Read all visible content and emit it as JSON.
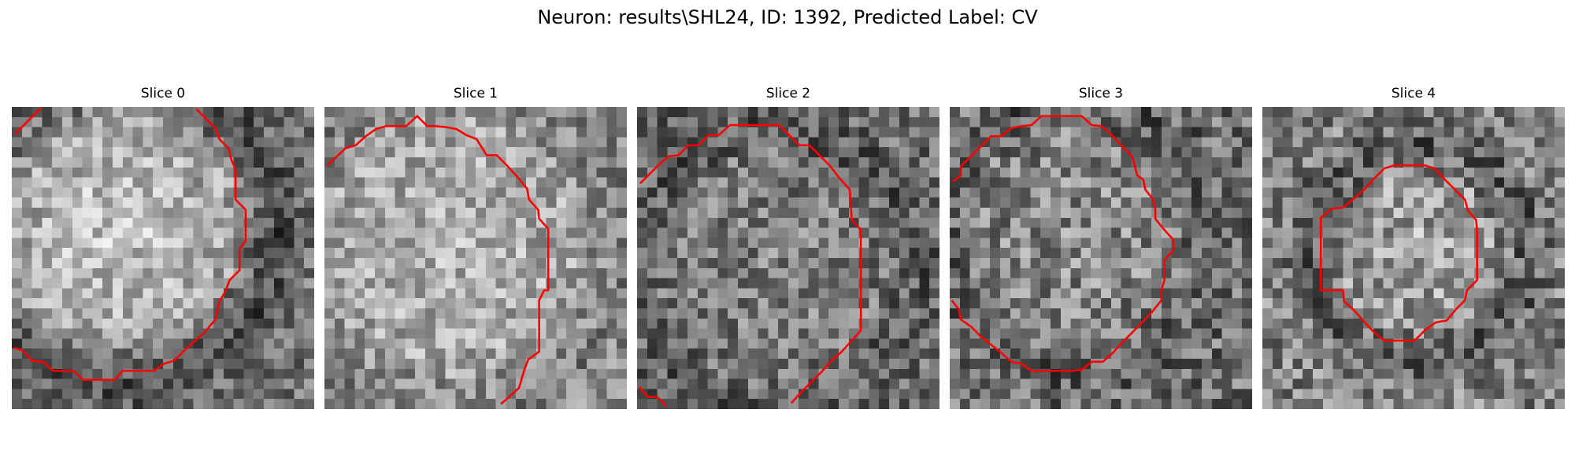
{
  "figure": {
    "title": "Neuron: results\\SHL24, ID: 1392, Predicted Label: CV"
  },
  "panels": [
    {
      "title": "Slice 0"
    },
    {
      "title": "Slice 1"
    },
    {
      "title": "Slice 2"
    },
    {
      "title": "Slice 3"
    },
    {
      "title": "Slice 4"
    }
  ],
  "colors": {
    "contour": "#ff0000",
    "background": "#ffffff"
  }
}
